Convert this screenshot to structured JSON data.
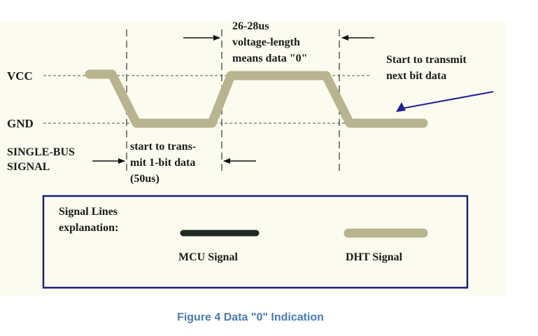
{
  "diagram": {
    "labels": {
      "vcc": "VCC",
      "gnd": "GND",
      "single_bus_line1": "SINGLE-BUS",
      "single_bus_line2": "SIGNAL",
      "high_line1": "26-28us",
      "high_line2": "voltage-length",
      "high_line3": "means data \"0\"",
      "low_line1": "start to trans-",
      "low_line2": "mit 1-bit data",
      "low_line3": "(50us)",
      "next_line1": "Start to transmit",
      "next_line2": "next bit data"
    },
    "legend": {
      "title_line1": "Signal Lines",
      "title_line2": "explanation:",
      "mcu_label": "MCU Signal",
      "dht_label": "DHT Signal"
    },
    "caption": "Figure 4 Data \"0\" Indication"
  },
  "colors": {
    "background": "#fbfbef",
    "dht_signal": "#b8b48f",
    "mcu_signal": "#1f2a22",
    "legend_border": "#1c1f7a",
    "caption": "#4a7ab5",
    "arrow": "#1c1f9a"
  }
}
